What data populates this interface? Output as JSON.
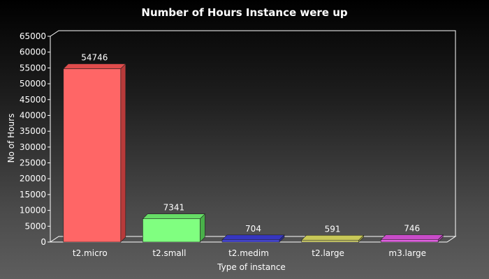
{
  "chart_data": {
    "type": "bar",
    "title": "Number of Hours Instance were up",
    "xlabel": "Type of instance",
    "ylabel": "No of Hours",
    "categories": [
      "t2.micro",
      "t2.small",
      "t2.medim",
      "t2.large",
      "m3.large"
    ],
    "values": [
      54746,
      7341,
      704,
      591,
      746
    ],
    "data_labels": [
      "54746",
      "7341",
      "704",
      "591",
      "746"
    ],
    "ylim": [
      0,
      65000
    ],
    "yticks": [
      0,
      5000,
      10000,
      15000,
      20000,
      25000,
      30000,
      35000,
      40000,
      45000,
      50000,
      55000,
      60000,
      65000
    ],
    "grid": false,
    "legend": "none",
    "bar_colors": [
      "#ff6666",
      "#80ff80",
      "#4848e0",
      "#e0e070",
      "#e060e0"
    ],
    "bar_side_colors": [
      "#b83a3a",
      "#49b049",
      "#2a2a9a",
      "#9c9c40",
      "#9c3a9c"
    ],
    "bar_top_colors": [
      "#e04c4c",
      "#66dd66",
      "#3636c0",
      "#c8c858",
      "#c84cc8"
    ],
    "frame_color": "#ffffff"
  }
}
